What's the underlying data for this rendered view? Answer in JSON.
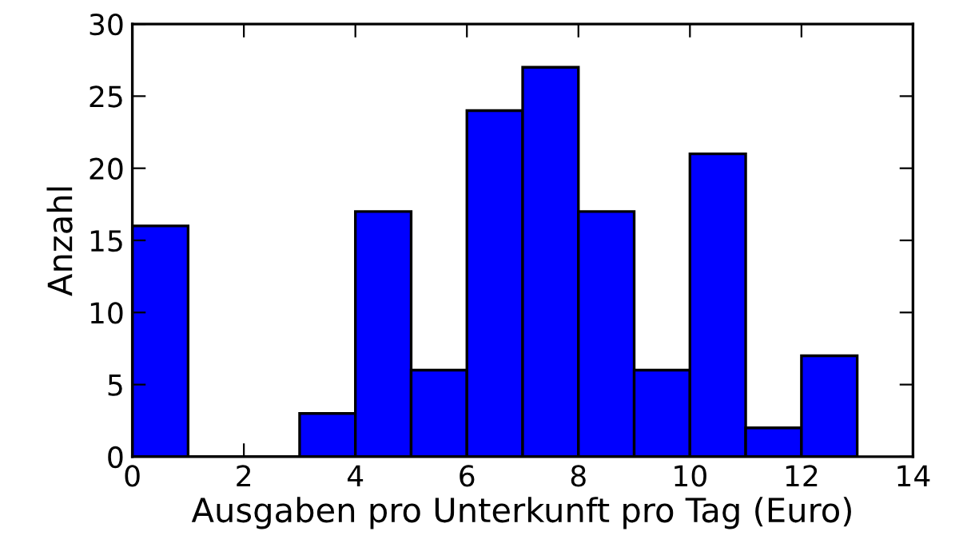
{
  "chart_data": {
    "type": "histogram",
    "xlabel": "Ausgaben pro Unterkunft pro Tag (Euro)",
    "ylabel": "Anzahl",
    "bins": [
      0,
      1,
      2,
      3,
      4,
      5,
      6,
      7,
      8,
      9,
      10,
      11,
      12,
      13
    ],
    "values": [
      16,
      0,
      0,
      3,
      17,
      6,
      24,
      27,
      17,
      6,
      21,
      2,
      7
    ],
    "color": "#0000ff",
    "xlim": [
      0,
      14
    ],
    "xticks": [
      0,
      2,
      4,
      6,
      8,
      10,
      12,
      14
    ],
    "ylim": [
      0,
      30
    ],
    "yticks": [
      0,
      5,
      10,
      15,
      20,
      25,
      30
    ],
    "grid": false
  }
}
